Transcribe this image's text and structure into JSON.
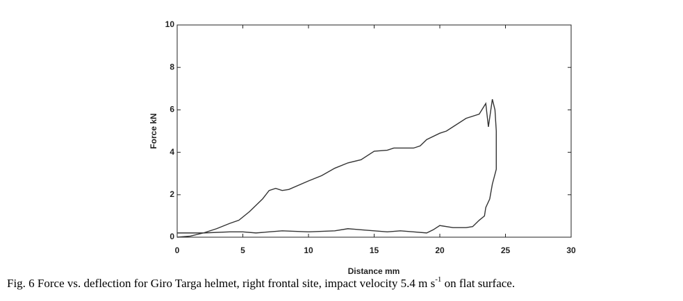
{
  "chart_data": {
    "type": "line",
    "xlabel": "Distance mm",
    "ylabel": "Force kN",
    "caption": {
      "main": "Fig. 6 Force vs. deflection for Giro Targa helmet, right frontal site, impact velocity 5.4 m s",
      "sup": "-1",
      "tail": " on flat surface."
    },
    "xlim": [
      0,
      30
    ],
    "xticks": [
      0,
      5,
      10,
      15,
      20,
      25,
      30
    ],
    "ylim": [
      0,
      10
    ],
    "yticks": [
      0,
      2,
      4,
      6,
      8,
      10
    ],
    "series": [
      {
        "color": "#333333",
        "x": [
          0,
          1,
          2,
          3,
          4,
          4.7,
          5.5,
          6.5,
          7,
          7.5,
          8,
          8.5,
          10,
          11,
          12,
          13,
          14,
          15,
          16,
          16.5,
          18,
          18.5,
          19,
          20,
          20.5,
          21,
          22,
          23,
          23.5,
          23.7,
          24,
          24.2,
          24.3,
          24.3,
          24,
          23.8,
          23.5,
          23.4,
          23,
          22.5,
          22,
          21,
          20,
          19.5,
          19,
          18,
          17,
          16,
          15,
          14,
          13,
          12,
          10,
          8,
          6,
          5,
          4,
          2,
          0
        ],
        "values": [
          0,
          0.05,
          0.2,
          0.4,
          0.65,
          0.8,
          1.2,
          1.8,
          2.2,
          2.3,
          2.2,
          2.25,
          2.65,
          2.9,
          3.25,
          3.5,
          3.65,
          4.05,
          4.1,
          4.2,
          4.2,
          4.3,
          4.6,
          4.9,
          5.0,
          5.2,
          5.6,
          5.8,
          6.3,
          5.2,
          6.5,
          6.0,
          5.0,
          3.2,
          2.5,
          1.8,
          1.4,
          1.0,
          0.8,
          0.5,
          0.45,
          0.45,
          0.55,
          0.35,
          0.2,
          0.25,
          0.3,
          0.25,
          0.3,
          0.35,
          0.4,
          0.3,
          0.25,
          0.3,
          0.2,
          0.25,
          0.25,
          0.2,
          0.2
        ]
      }
    ]
  }
}
